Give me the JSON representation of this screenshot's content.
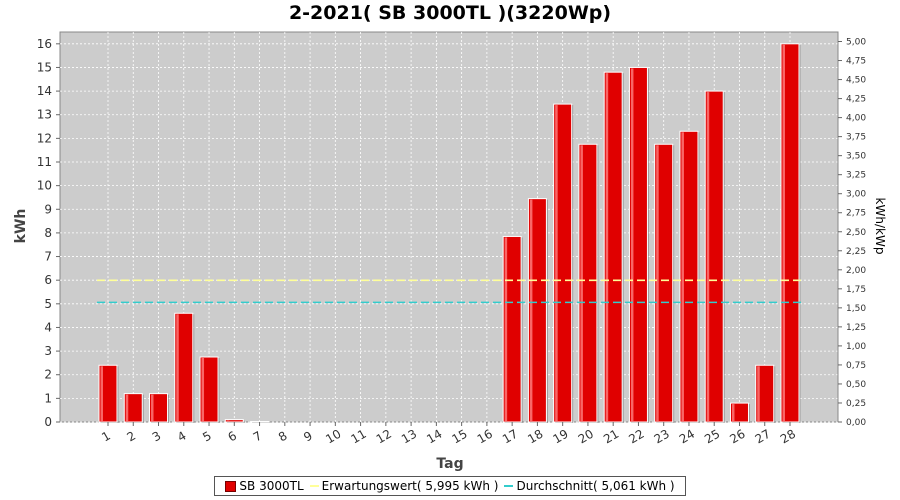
{
  "chart_data": {
    "type": "bar",
    "title": "2-2021( SB 3000TL )(3220Wp)",
    "xlabel": "Tag",
    "ylabel": "kWh",
    "y2label": "kWh/kWp",
    "ylim": [
      0,
      16.5
    ],
    "y2lim": [
      0,
      5.125
    ],
    "yticks": [
      "0",
      "1",
      "2",
      "3",
      "4",
      "5",
      "6",
      "7",
      "8",
      "9",
      "10",
      "11",
      "12",
      "13",
      "14",
      "15",
      "16"
    ],
    "y2ticks": [
      "0,00",
      "0,25",
      "0,50",
      "0,75",
      "1,00",
      "1,25",
      "1,50",
      "1,75",
      "2,00",
      "2,25",
      "2,50",
      "2,75",
      "3,00",
      "3,25",
      "3,50",
      "3,75",
      "4,00",
      "4,25",
      "4,50",
      "4,75",
      "5,00"
    ],
    "categories": [
      "1",
      "2",
      "3",
      "4",
      "5",
      "6",
      "7",
      "8",
      "9",
      "10",
      "11",
      "12",
      "13",
      "14",
      "15",
      "16",
      "17",
      "18",
      "19",
      "20",
      "21",
      "22",
      "23",
      "24",
      "25",
      "26",
      "27",
      "28"
    ],
    "series": [
      {
        "name": "SB 3000TL",
        "color": "#e00000",
        "values": [
          2.4,
          1.2,
          1.2,
          4.6,
          2.75,
          0.1,
          0.02,
          0,
          0,
          0,
          0,
          0,
          0,
          0,
          0,
          0,
          7.85,
          9.45,
          13.45,
          11.75,
          14.8,
          15.0,
          11.75,
          12.3,
          14.0,
          0.8,
          2.4,
          16.0
        ]
      }
    ],
    "reference_lines": [
      {
        "name": "Erwartungswert( 5,995 kWh )",
        "value": 5.995,
        "color": "#ffff99",
        "style": "dashed"
      },
      {
        "name": "Durchschnitt( 5,061 kWh )",
        "value": 5.061,
        "color": "#33cccc",
        "style": "dashed"
      }
    ],
    "grid": true,
    "legend_position": "bottom"
  }
}
